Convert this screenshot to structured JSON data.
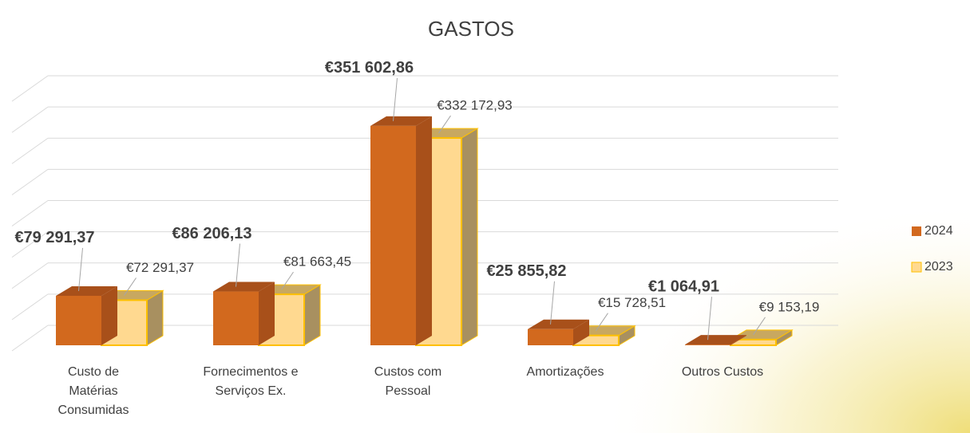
{
  "chart_data": {
    "type": "bar3d",
    "title": "GASTOS",
    "categories": [
      "Custo de Matérias Consumidas",
      "Fornecimentos e Serviços Ex.",
      "Custos com Pessoal",
      "Amortizações",
      "Outros Custos"
    ],
    "series": [
      {
        "name": "2024",
        "color": "#d2691e",
        "values": [
          79291.37,
          86206.13,
          351602.86,
          25855.82,
          1064.91
        ],
        "value_labels": [
          "€79 291,37",
          "€86 206,13",
          "€351 602,86",
          "€25 855,82",
          "€1 064,91"
        ]
      },
      {
        "name": "2023",
        "color": "#ffd990",
        "values": [
          72291.37,
          81663.45,
          332172.93,
          15728.51,
          9153.19
        ],
        "value_labels": [
          "€72 291,37",
          "€81 663,45",
          "€332 172,93",
          "€15 728,51",
          "€9 153,19"
        ]
      }
    ],
    "ylim": [
      0,
      400000
    ],
    "yticks": [
      0,
      50000,
      100000,
      150000,
      200000,
      250000,
      300000,
      350000,
      400000
    ],
    "grid": true,
    "legend": "right"
  }
}
